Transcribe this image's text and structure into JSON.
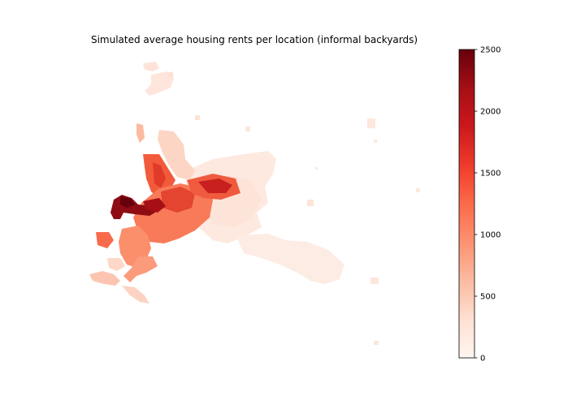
{
  "figure": {
    "title": "Simulated average housing rents per location (informal backyards)"
  },
  "colorbar": {
    "colormap": "Reds",
    "min": 0,
    "max": 2500,
    "ticks": [
      "0",
      "500",
      "1000",
      "1500",
      "2000",
      "2500"
    ],
    "colors": [
      "#fff5f0",
      "#fee0d2",
      "#fcbba1",
      "#fc9272",
      "#fb6a4a",
      "#ef3b2c",
      "#cb181d",
      "#a50f15",
      "#67000d"
    ]
  }
}
